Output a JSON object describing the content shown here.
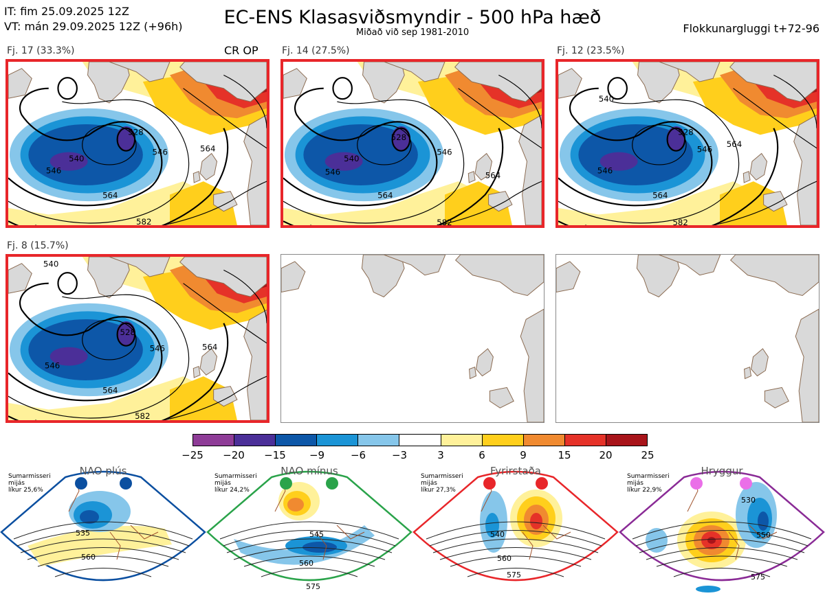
{
  "header": {
    "it": "IT: fim 25.09.2025 12Z",
    "vt": "VT: mán 29.09.2025 12Z  (+96h)",
    "title": "EC-ENS Klasasviðsmyndir - 500 hPa hæð",
    "subtitle": "Miðað við sep 1981-2010",
    "window": "Flokkunargluggi t+72-96"
  },
  "clusters": [
    {
      "label": "Fj. 17 (33.3%)",
      "tag": "CR OP",
      "contours": [
        "540",
        "528",
        "546",
        "546",
        "564",
        "564",
        "582"
      ]
    },
    {
      "label": "Fj. 14 (27.5%)",
      "contours": [
        "540",
        "528",
        "546",
        "546",
        "564",
        "564",
        "582"
      ]
    },
    {
      "label": "Fj. 12 (23.5%)",
      "contours": [
        "540",
        "528",
        "546",
        "546",
        "564",
        "564",
        "582"
      ]
    },
    {
      "label": "Fj. 8 (15.7%)",
      "contours": [
        "540",
        "528",
        "546",
        "546",
        "564",
        "564",
        "582"
      ]
    }
  ],
  "colorbar": {
    "ticks": [
      "−25",
      "−20",
      "−15",
      "−9",
      "−6",
      "−3",
      "3",
      "6",
      "9",
      "15",
      "20",
      "25"
    ],
    "colors": [
      "#8e3c97",
      "#4b2f98",
      "#0d57a8",
      "#1b94d6",
      "#86c6ea",
      "#ffffff",
      "#fff19a",
      "#ffcf1c",
      "#f08a30",
      "#e53228",
      "#a8141a"
    ]
  },
  "regimes": [
    {
      "title": "NAO plús",
      "season": "Sumarmisseri",
      "period": "mijás",
      "likelihood": "líkur 25,6%",
      "color": "#0b4fa0",
      "contours": [
        "535",
        "560"
      ]
    },
    {
      "title": "NAO mínus",
      "season": "Sumarmisseri",
      "period": "mijás",
      "likelihood": "líkur 24,2%",
      "color": "#2aa34a",
      "contours": [
        "545",
        "560",
        "575"
      ]
    },
    {
      "title": "Fyrirstaða",
      "season": "Sumarmisseri",
      "period": "mijás",
      "likelihood": "líkur 27,3%",
      "color": "#e8262a",
      "contours": [
        "540",
        "560",
        "575"
      ]
    },
    {
      "title": "Hryggur",
      "season": "Sumarmisseri",
      "period": "mijás",
      "likelihood": "líkur 22,9%",
      "color": "#8a2b96",
      "contours": [
        "530",
        "550",
        "575"
      ]
    }
  ]
}
